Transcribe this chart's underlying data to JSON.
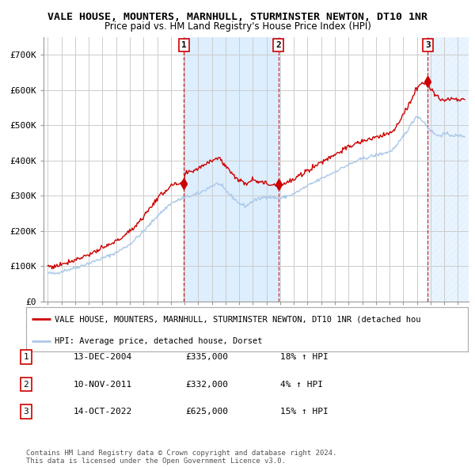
{
  "title": "VALE HOUSE, MOUNTERS, MARNHULL, STURMINSTER NEWTON, DT10 1NR",
  "subtitle": "Price paid vs. HM Land Registry's House Price Index (HPI)",
  "ylim": [
    0,
    750000
  ],
  "yticks": [
    0,
    100000,
    200000,
    300000,
    400000,
    500000,
    600000,
    700000
  ],
  "ytick_labels": [
    "£0",
    "£100K",
    "£200K",
    "£300K",
    "£400K",
    "£500K",
    "£600K",
    "£700K"
  ],
  "sale_dates": [
    2004.96,
    2011.87,
    2022.79
  ],
  "sale_prices": [
    335000,
    332000,
    625000
  ],
  "sale_labels": [
    "1",
    "2",
    "3"
  ],
  "legend_red": "VALE HOUSE, MOUNTERS, MARNHULL, STURMINSTER NEWTON, DT10 1NR (detached hou",
  "legend_blue": "HPI: Average price, detached house, Dorset",
  "table_rows": [
    [
      "1",
      "13-DEC-2004",
      "£335,000",
      "18% ↑ HPI"
    ],
    [
      "2",
      "10-NOV-2011",
      "£332,000",
      "4% ↑ HPI"
    ],
    [
      "3",
      "14-OCT-2022",
      "£625,000",
      "15% ↑ HPI"
    ]
  ],
  "footer": "Contains HM Land Registry data © Crown copyright and database right 2024.\nThis data is licensed under the Open Government Licence v3.0.",
  "hpi_color": "#aac8e8",
  "price_color": "#cc0000",
  "shaded_color": "#ddeeff",
  "grid_color": "#cccccc",
  "xlim_left": 1994.7,
  "xlim_right": 2025.8
}
